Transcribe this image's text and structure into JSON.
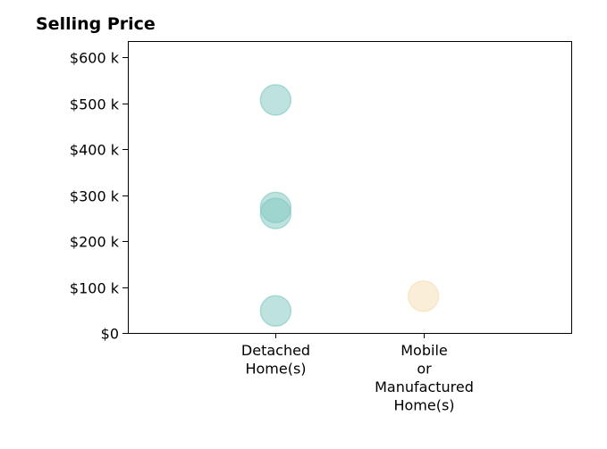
{
  "chart_data": {
    "type": "scatter",
    "title": "Selling Price",
    "xlabel": "",
    "ylabel": "",
    "categories": [
      "Detached\nHome(s)",
      "Mobile\nor\nManufactured\nHome(s)"
    ],
    "ylim": [
      0,
      635000
    ],
    "yticks": [
      0,
      100000,
      200000,
      300000,
      400000,
      500000,
      600000
    ],
    "ytick_labels": [
      "$0",
      "$100 k",
      "$200 k",
      "$300 k",
      "$400 k",
      "$500 k",
      "$600 k"
    ],
    "grid": false,
    "series": [
      {
        "category": "Detached\nHome(s)",
        "color": "#7ec8bf",
        "values": [
          507000,
          273000,
          260000,
          48000
        ]
      },
      {
        "category": "Mobile\nor\nManufactured\nHome(s)",
        "color": "#f5deb3",
        "values": [
          80000
        ]
      }
    ]
  }
}
